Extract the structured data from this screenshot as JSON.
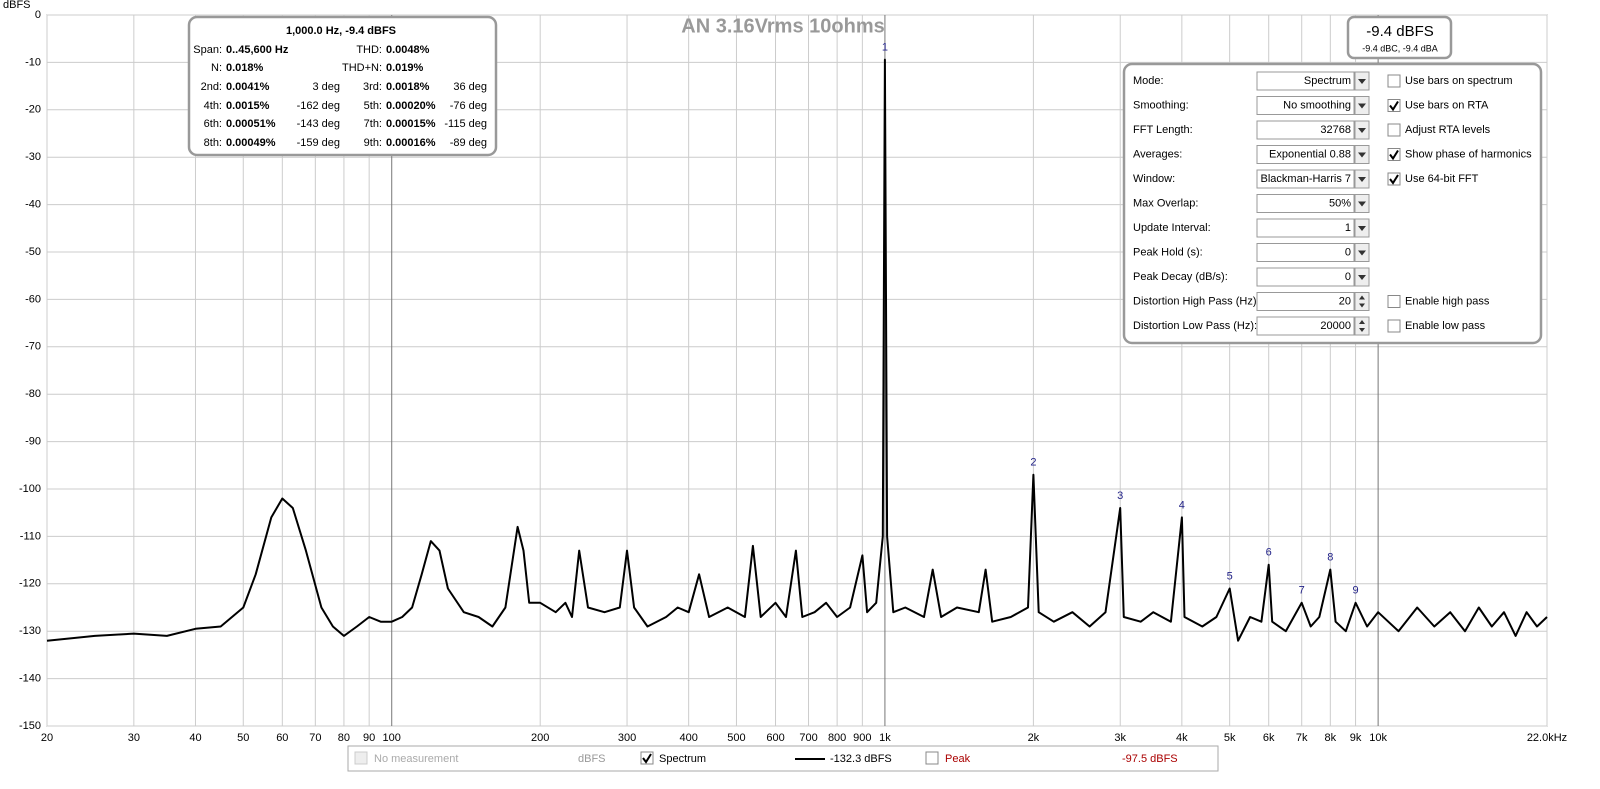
{
  "chart_data": {
    "type": "line",
    "title": "AN 3.16Vrms 10ohms",
    "y_label": "dBFS",
    "log_x": true,
    "grid": true,
    "xlim": [
      20,
      22000
    ],
    "ylim": [
      -150,
      0
    ],
    "xticks": [
      20,
      30,
      40,
      50,
      60,
      70,
      80,
      90,
      100,
      200,
      300,
      400,
      500,
      600,
      700,
      800,
      900,
      {
        "value": 1000,
        "label": "1k"
      },
      {
        "value": 2000,
        "label": "2k"
      },
      {
        "value": 3000,
        "label": "3k"
      },
      {
        "value": 4000,
        "label": "4k"
      },
      {
        "value": 5000,
        "label": "5k"
      },
      {
        "value": 6000,
        "label": "6k"
      },
      {
        "value": 7000,
        "label": "7k"
      },
      {
        "value": 8000,
        "label": "8k"
      },
      {
        "value": 9000,
        "label": "9k"
      },
      {
        "value": 10000,
        "label": "10k"
      },
      {
        "value": 22000,
        "label": "22.0kHz"
      }
    ],
    "yticks": [
      0,
      -10,
      -20,
      -30,
      -40,
      -50,
      -60,
      -70,
      -80,
      -90,
      -100,
      -110,
      -120,
      -130,
      -140,
      -150
    ],
    "x": [
      20,
      25,
      30,
      35,
      40,
      45,
      50,
      53,
      57,
      60,
      63,
      67,
      72,
      76,
      80,
      85,
      90,
      95,
      100,
      105,
      110,
      115,
      120,
      125,
      130,
      140,
      150,
      160,
      170,
      180,
      185,
      190,
      200,
      215,
      225,
      232,
      240,
      250,
      270,
      290,
      300,
      310,
      330,
      360,
      380,
      400,
      420,
      440,
      480,
      520,
      540,
      560,
      600,
      630,
      660,
      680,
      720,
      760,
      800,
      850,
      900,
      920,
      960,
      990,
      1000,
      1010,
      1040,
      1100,
      1200,
      1250,
      1300,
      1400,
      1550,
      1600,
      1650,
      1800,
      1950,
      2000,
      2050,
      2200,
      2400,
      2600,
      2800,
      3000,
      3050,
      3300,
      3500,
      3800,
      4000,
      4050,
      4400,
      4700,
      5000,
      5200,
      5500,
      5800,
      6000,
      6100,
      6500,
      7000,
      7300,
      7600,
      8000,
      8200,
      8600,
      9000,
      9500,
      10000,
      11000,
      12000,
      13000,
      14000,
      15000,
      16000,
      17000,
      18000,
      19000,
      20000,
      21000,
      22000
    ],
    "series": [
      {
        "name": "Spectrum",
        "color": "#000000",
        "values": [
          -132,
          -131,
          -130.5,
          -131,
          -129.5,
          -129,
          -125,
          -118,
          -106,
          -102,
          -104,
          -113,
          -125,
          -129,
          -131,
          -129,
          -127,
          -128,
          -128,
          -127,
          -125,
          -118,
          -111,
          -113,
          -121,
          -126,
          -127,
          -129,
          -125,
          -108,
          -113,
          -124,
          -124,
          -126,
          -124,
          -127,
          -113,
          -125,
          -126,
          -125,
          -113,
          -125,
          -129,
          -127,
          -125,
          -126,
          -118,
          -127,
          -125,
          -127,
          -112,
          -127,
          -124,
          -127,
          -113,
          -127,
          -126,
          -124,
          -127,
          -125,
          -114,
          -126,
          -124,
          -110,
          -9.4,
          -110,
          -126,
          -125,
          -127,
          -117,
          -127,
          -125,
          -126,
          -117,
          -128,
          -127,
          -125,
          -97,
          -126,
          -128,
          -126,
          -129,
          -126,
          -104,
          -127,
          -128,
          -126,
          -128,
          -106,
          -127,
          -129,
          -127,
          -121,
          -132,
          -127,
          -128,
          -116,
          -128,
          -130,
          -124,
          -129,
          -127,
          -117,
          -128,
          -130,
          -124,
          -129,
          -126,
          -130,
          -125,
          -129,
          -126,
          -130,
          -125,
          -129,
          -126,
          -131,
          -126,
          -129,
          -127
        ]
      }
    ],
    "harmonics": {
      "labels": [
        1,
        2,
        3,
        4,
        5,
        6,
        7,
        8,
        9
      ],
      "freqs": [
        1000,
        2000,
        3000,
        4000,
        5000,
        6000,
        7000,
        8000,
        9000
      ],
      "levels": [
        -9.4,
        -97,
        -104,
        -106,
        -121,
        -116,
        -124,
        -117,
        -124
      ]
    }
  },
  "info_box": {
    "header": "1,000.0 Hz, -9.4 dBFS",
    "rows": [
      [
        "Span:",
        "0..45,600 Hz",
        "",
        "THD:",
        "0.0048%",
        ""
      ],
      [
        "N:",
        "0.018%",
        "",
        "THD+N:",
        "0.019%",
        ""
      ],
      [
        "2nd:",
        "0.0041%",
        "3 deg",
        "3rd:",
        "0.0018%",
        "36 deg"
      ],
      [
        "4th:",
        "0.0015%",
        "-162 deg",
        "5th:",
        "0.00020%",
        "-76 deg"
      ],
      [
        "6th:",
        "0.00051%",
        "-143 deg",
        "7th:",
        "0.00015%",
        "-115 deg"
      ],
      [
        "8th:",
        "0.00049%",
        "-159 deg",
        "9th:",
        "0.00016%",
        "-89 deg"
      ]
    ]
  },
  "level_box": {
    "main": "-9.4 dBFS",
    "sub": "-9.4 dBC, -9.4 dBA"
  },
  "settings": [
    {
      "label": "Mode:",
      "value": "Spectrum",
      "control": "dropdown",
      "option": "Use bars on spectrum",
      "checked": false
    },
    {
      "label": "Smoothing:",
      "value": "No  smoothing",
      "control": "dropdown",
      "option": "Use bars on RTA",
      "checked": true
    },
    {
      "label": "FFT Length:",
      "value": "32768",
      "control": "dropdown",
      "option": "Adjust RTA levels",
      "checked": false
    },
    {
      "label": "Averages:",
      "value": "Exponential 0.88",
      "control": "dropdown",
      "option": "Show phase of harmonics",
      "checked": true
    },
    {
      "label": "Window:",
      "value": "Blackman-Harris 7",
      "control": "dropdown",
      "option": "Use 64-bit FFT",
      "checked": true
    },
    {
      "label": "Max Overlap:",
      "value": "50%",
      "control": "dropdown"
    },
    {
      "label": "Update Interval:",
      "value": "1",
      "control": "dropdown"
    },
    {
      "label": "Peak Hold (s):",
      "value": "0",
      "control": "dropdown"
    },
    {
      "label": "Peak Decay (dB/s):",
      "value": "0",
      "control": "dropdown"
    },
    {
      "label": "Distortion High Pass (Hz):",
      "value": "20",
      "control": "spin",
      "option": "Enable high pass",
      "checked": false
    },
    {
      "label": "Distortion Low Pass (Hz):",
      "value": "20000",
      "control": "spin",
      "option": "Enable low pass",
      "checked": false
    }
  ],
  "legend": {
    "no_measurement": "No measurement",
    "unit": "dBFS",
    "spectrum_checked": true,
    "spectrum_readout": "-132.3 dBFS",
    "peak": "Peak",
    "peak_checked": false,
    "peak_readout": "-97.5 dBFS"
  }
}
